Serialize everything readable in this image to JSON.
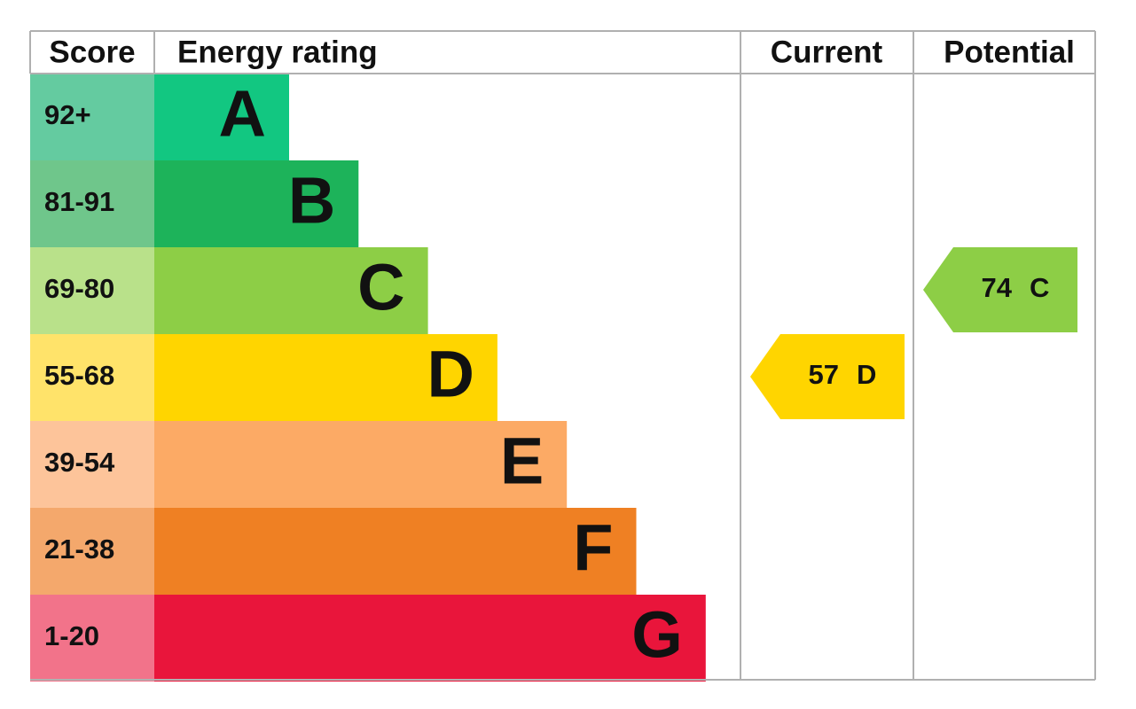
{
  "header": {
    "score": "Score",
    "rating": "Energy rating",
    "current": "Current",
    "potential": "Potential"
  },
  "rows": [
    {
      "score": "92+",
      "letter": "A",
      "color": "#12c781",
      "score_color": "#64cba0"
    },
    {
      "score": "81-91",
      "letter": "B",
      "color": "#1db35a",
      "score_color": "#6fc68b"
    },
    {
      "score": "69-80",
      "letter": "C",
      "color": "#8dce46",
      "score_color": "#b9e18a"
    },
    {
      "score": "55-68",
      "letter": "D",
      "color": "#ffd500",
      "score_color": "#ffe36a"
    },
    {
      "score": "39-54",
      "letter": "E",
      "color": "#fcaa65",
      "score_color": "#fdc49a"
    },
    {
      "score": "21-38",
      "letter": "F",
      "color": "#ef8023",
      "score_color": "#f4a86c"
    },
    {
      "score": "1-20",
      "letter": "G",
      "color": "#e9153b",
      "score_color": "#f2738a"
    }
  ],
  "current": {
    "value": 57,
    "letter": "D"
  },
  "potential": {
    "value": 74,
    "letter": "C"
  }
}
